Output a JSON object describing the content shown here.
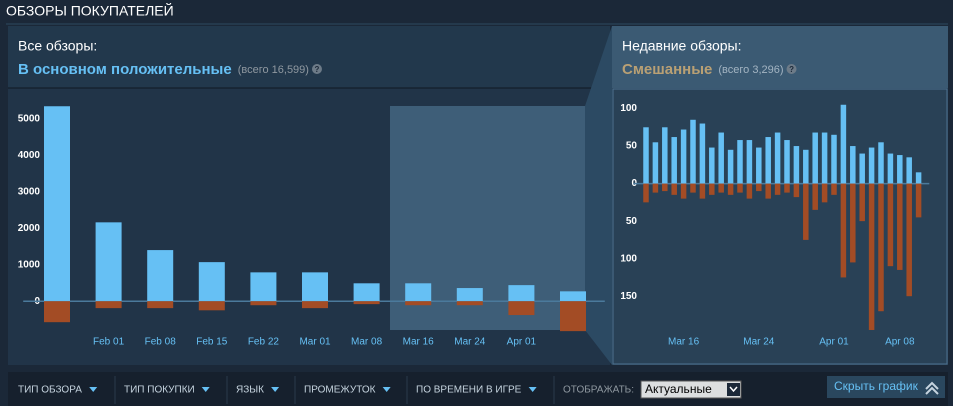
{
  "header": {
    "title": "ОБЗОРЫ ПОКУПАТЕЛЕЙ"
  },
  "overall": {
    "label": "Все обзоры:",
    "rating": "В основном положительные",
    "count": "(всего 16,599)"
  },
  "recent": {
    "label": "Недавние обзоры:",
    "rating": "Смешанные",
    "count": "(всего 3,296)"
  },
  "chart_data": [
    {
      "type": "bar",
      "categories": [
        null,
        "Feb 01",
        "Feb 08",
        "Feb 15",
        "Feb 22",
        "Mar 01",
        "Mar 08",
        "Mar 16",
        "Mar 24",
        "Apr 01",
        null
      ],
      "series": [
        {
          "color": "#66c0f4",
          "values": [
            5340,
            2160,
            1400,
            1070,
            790,
            790,
            490,
            490,
            360,
            440,
            270
          ]
        },
        {
          "color": "#a34c25",
          "values": [
            -575,
            -190,
            -190,
            -250,
            -110,
            -190,
            -80,
            -110,
            -110,
            -380,
            -820
          ]
        }
      ],
      "ylim": [
        -1200,
        5840
      ],
      "yticks": [
        0,
        1000,
        2000,
        3000,
        4000,
        5000
      ]
    },
    {
      "type": "bar",
      "categories": [
        null,
        null,
        null,
        null,
        "Mar 16",
        null,
        null,
        null,
        null,
        null,
        null,
        null,
        "Mar 24",
        null,
        null,
        null,
        null,
        null,
        null,
        null,
        "Apr 01",
        null,
        null,
        null,
        null,
        null,
        null,
        "Apr 08",
        null,
        null
      ],
      "series": [
        {
          "color": "#66c0f4",
          "values": [
            75,
            55,
            75,
            62,
            72,
            85,
            80,
            48,
            68,
            45,
            58,
            58,
            48,
            62,
            68,
            58,
            50,
            45,
            68,
            68,
            65,
            105,
            50,
            40,
            48,
            55,
            40,
            38,
            35,
            15
          ]
        },
        {
          "color": "#a34c25",
          "values": [
            -25,
            -12,
            -10,
            -15,
            -20,
            -12,
            -20,
            -15,
            -12,
            -15,
            -12,
            -20,
            -10,
            -20,
            -15,
            -12,
            -18,
            -75,
            -35,
            -25,
            -15,
            -125,
            -105,
            -50,
            -195,
            -170,
            -110,
            -115,
            -150,
            -45
          ]
        }
      ],
      "ylim": [
        -215,
        122
      ],
      "yticks": [
        {
          "value": -150,
          "label": "150"
        },
        {
          "value": -100,
          "label": "100"
        },
        {
          "value": -50,
          "label": "50"
        },
        0,
        50,
        100
      ]
    }
  ],
  "filters": {
    "items": [
      "ТИП ОБЗОРА",
      "ТИП ПОКУПКИ",
      "ЯЗЫК",
      "ПРОМЕЖУТОК",
      "ПО ВРЕМЕНИ В ИГРЕ"
    ],
    "display_label": "ОТОБРАЖАТЬ:",
    "display_value": "Актуальные",
    "hide": "Скрыть график"
  }
}
